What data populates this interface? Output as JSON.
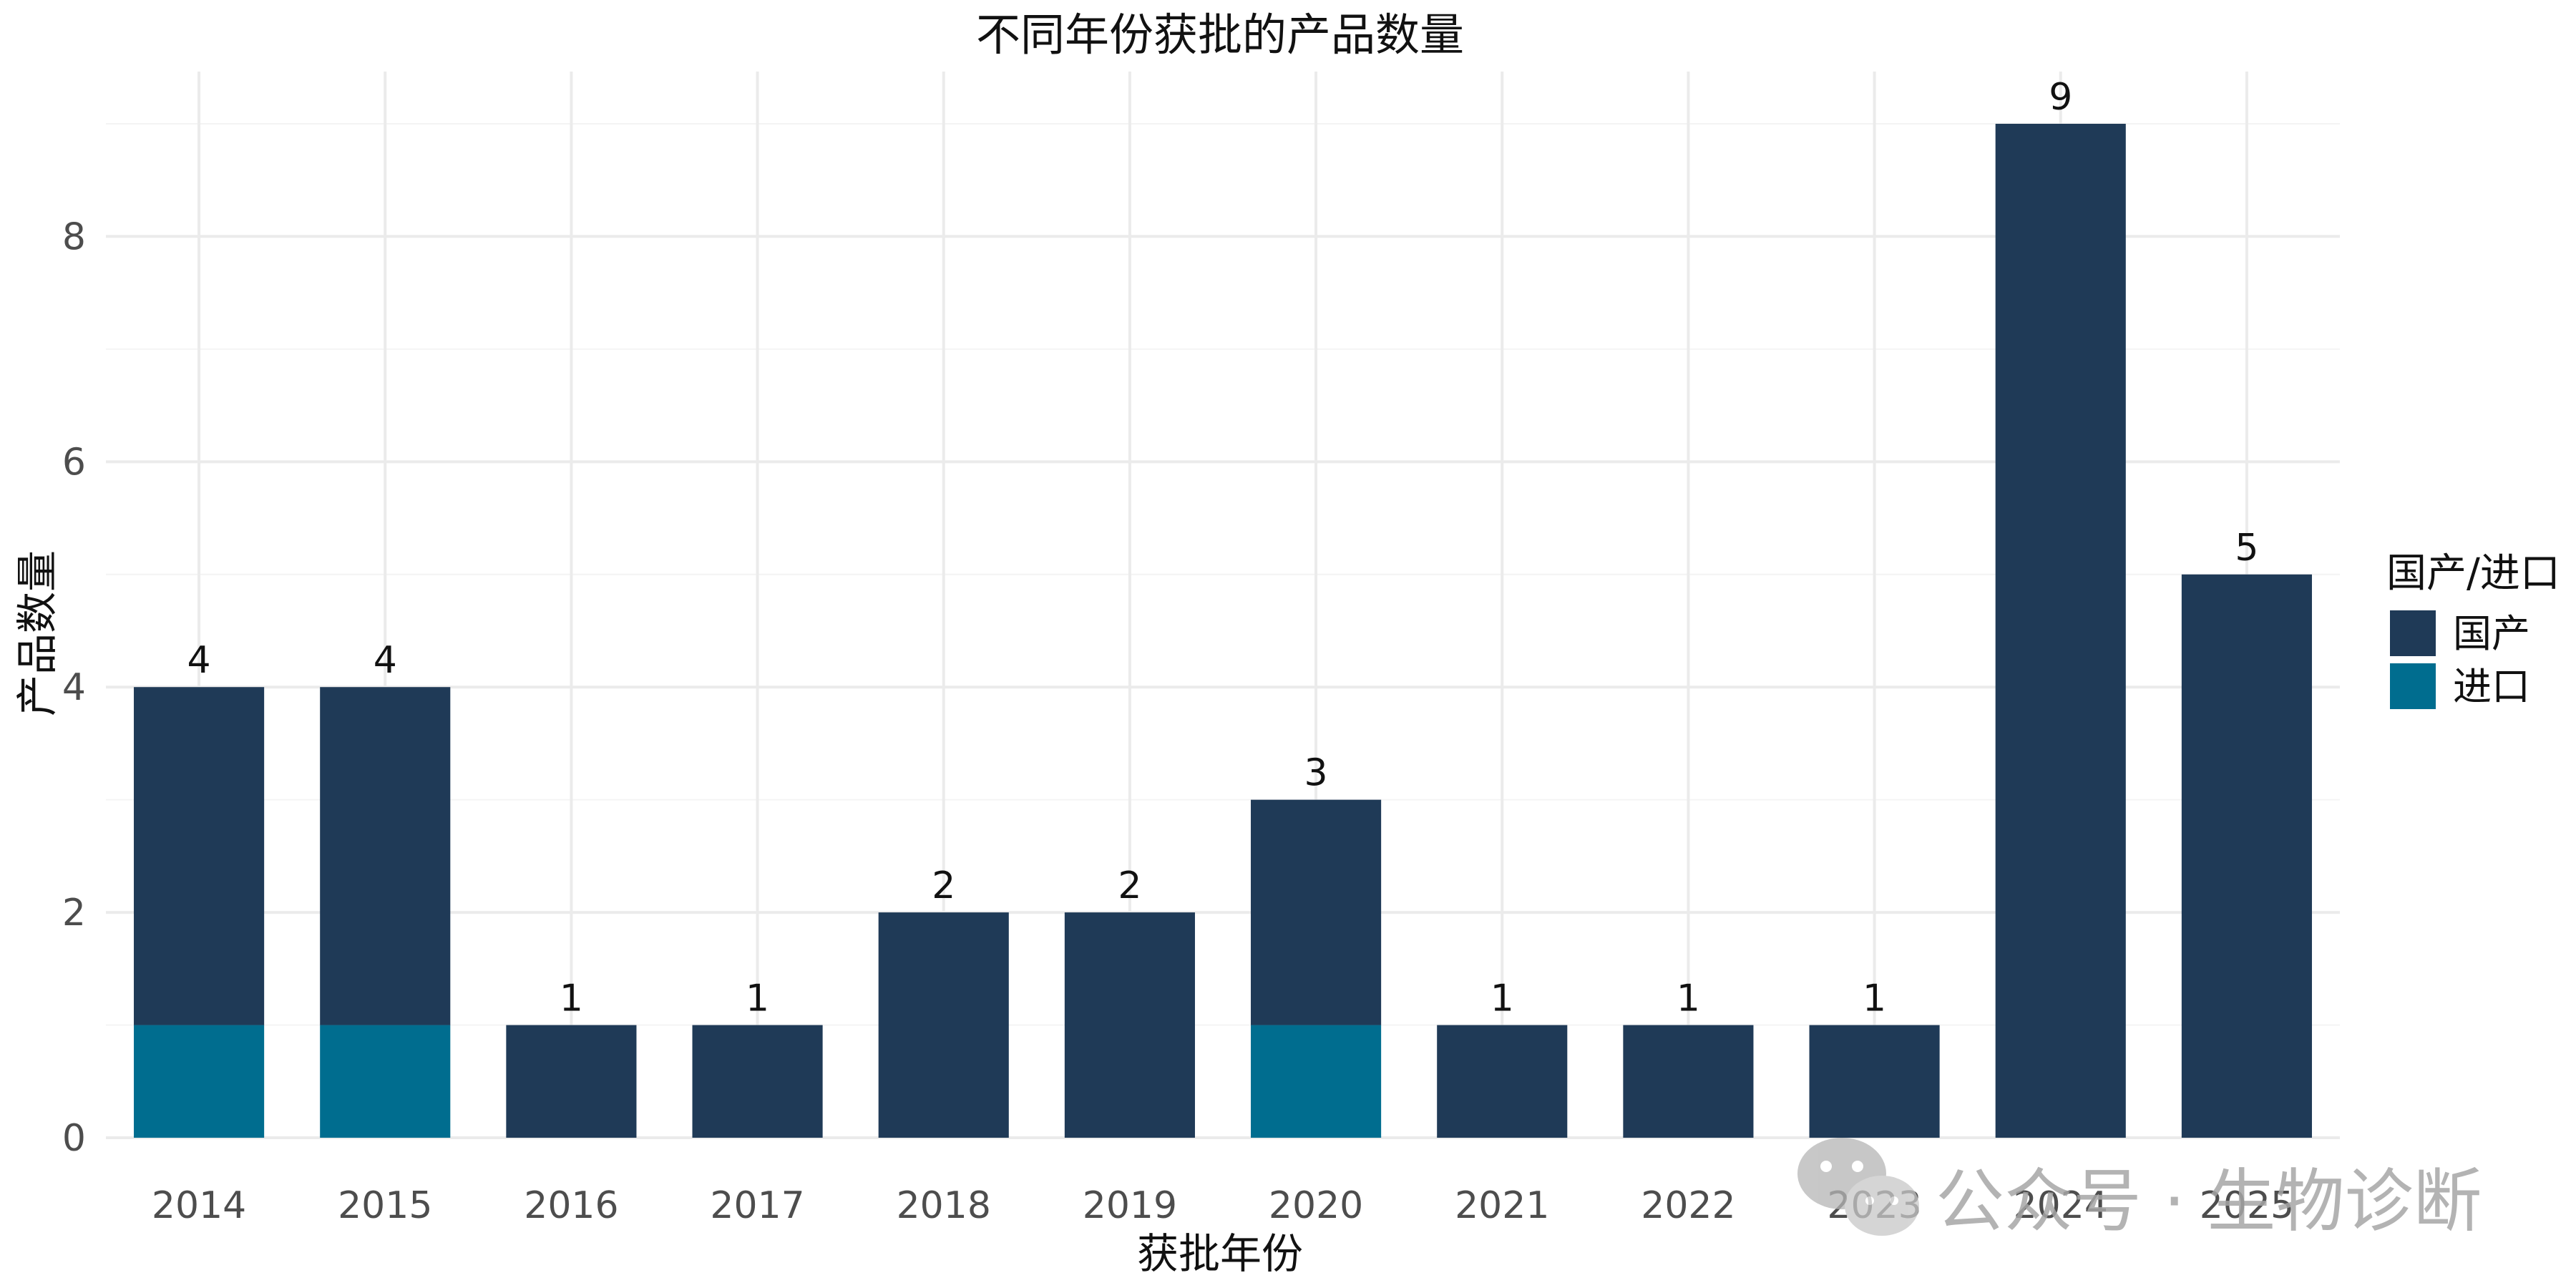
{
  "chart_data": {
    "type": "bar",
    "stacked": true,
    "title": "不同年份获批的产品数量",
    "xlabel": "获批年份",
    "ylabel": "产品数量",
    "categories": [
      "2014",
      "2015",
      "2016",
      "2017",
      "2018",
      "2019",
      "2020",
      "2021",
      "2022",
      "2023",
      "2024",
      "2025"
    ],
    "series": [
      {
        "name": "进口",
        "color": "#006d8f",
        "values": [
          1,
          1,
          0,
          0,
          0,
          0,
          1,
          0,
          0,
          0,
          0,
          0
        ]
      },
      {
        "name": "国产",
        "color": "#1f3a57",
        "values": [
          3,
          3,
          1,
          1,
          2,
          2,
          2,
          1,
          1,
          1,
          9,
          5
        ]
      }
    ],
    "totals": [
      4,
      4,
      1,
      1,
      2,
      2,
      3,
      1,
      1,
      1,
      9,
      5
    ],
    "ylim": [
      0,
      9.4
    ],
    "yticks": [
      0,
      2,
      4,
      6,
      8
    ],
    "grid": true,
    "legend": {
      "title": "国产/进口",
      "position": "right",
      "items": [
        {
          "label": "国产",
          "color": "#1f3a57"
        },
        {
          "label": "进口",
          "color": "#006d8f"
        }
      ]
    }
  },
  "watermark": {
    "text": "公众号 · 生物诊断",
    "icon": "wechat-icon"
  }
}
